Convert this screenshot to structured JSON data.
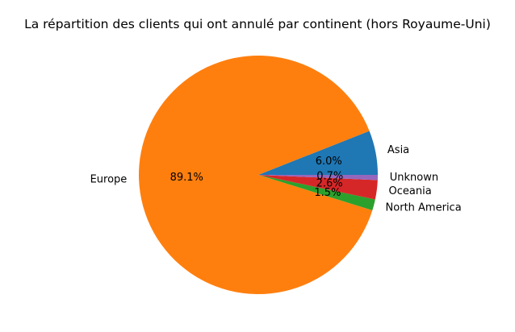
{
  "chart_data": {
    "type": "pie",
    "title": "La répartition des clients qui ont annulé par continent (hors Royaume-Uni)",
    "slices": [
      {
        "label": "Asia",
        "value": 6.0,
        "pct_label": "6.0%",
        "color": "#1f77b4"
      },
      {
        "label": "Europe",
        "value": 89.1,
        "pct_label": "89.1%",
        "color": "#ff7f0e"
      },
      {
        "label": "North America",
        "value": 1.5,
        "pct_label": "1.5%",
        "color": "#2ca02c"
      },
      {
        "label": "Oceania",
        "value": 2.6,
        "pct_label": "2.6%",
        "color": "#d62728"
      },
      {
        "label": "Unknown",
        "value": 0.7,
        "pct_label": "0.7%",
        "color": "#9467bd"
      }
    ],
    "start_angle_deg": 0,
    "direction": "counterclockwise"
  }
}
